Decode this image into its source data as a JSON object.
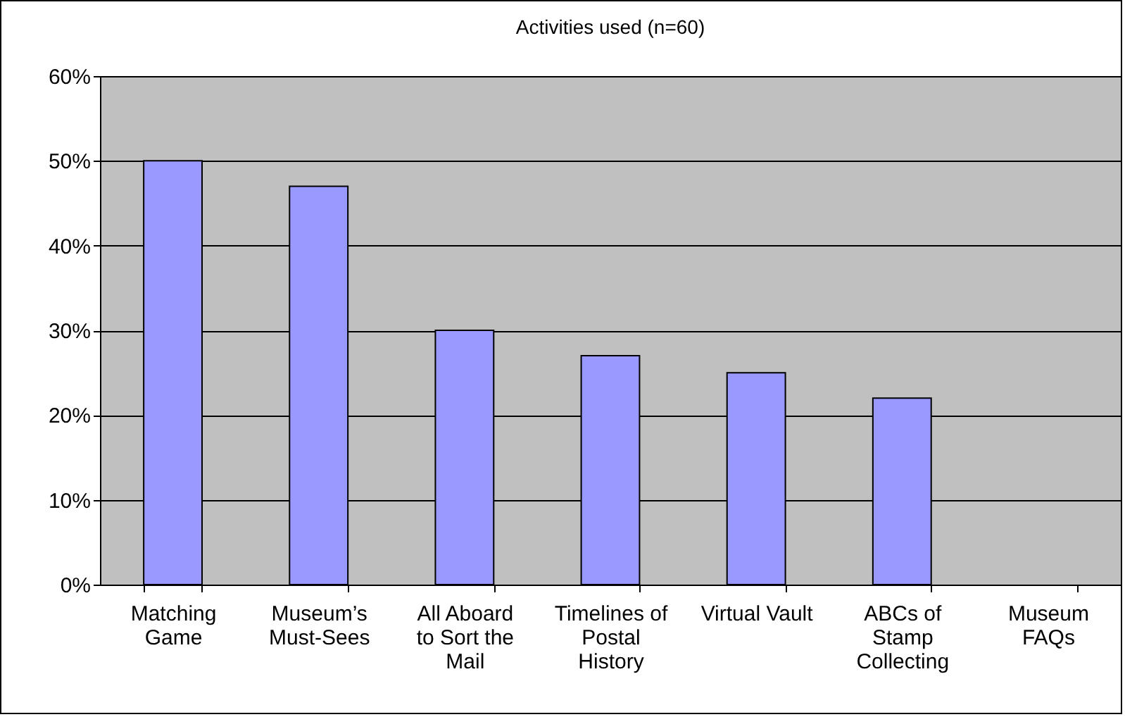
{
  "chart_data": {
    "type": "bar",
    "title": "Activities used (n=60)",
    "categories": [
      "Matching Game",
      "Museum’s Must-Sees",
      "All Aboard to Sort the Mail",
      "Timelines of Postal History",
      "Virtual Vault",
      "ABCs of Stamp Collecting",
      "Museum FAQs"
    ],
    "values": [
      50,
      47,
      30,
      27,
      25,
      22,
      null
    ],
    "color": "#9999ff",
    "ylim": [
      0,
      60
    ],
    "yticks": [
      {
        "value": 0,
        "label": "0%"
      },
      {
        "value": 10,
        "label": "10%"
      },
      {
        "value": 20,
        "label": "20%"
      },
      {
        "value": 30,
        "label": "30%"
      },
      {
        "value": 40,
        "label": "40%"
      },
      {
        "value": 50,
        "label": "50%"
      },
      {
        "value": 60,
        "label": "60%"
      }
    ],
    "grid": "y"
  }
}
